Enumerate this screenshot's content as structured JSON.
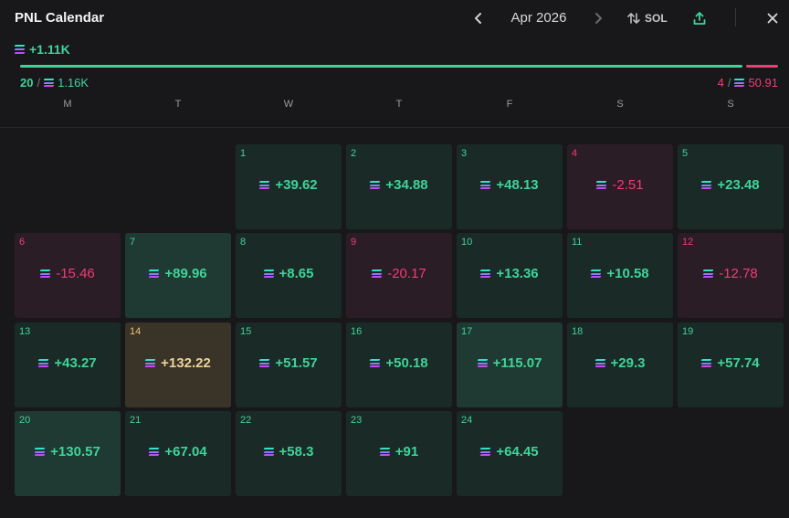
{
  "header": {
    "title": "PNL Calendar",
    "month": "Apr 2026",
    "currency": "SOL"
  },
  "summary": {
    "total": "+1.11K",
    "win_days": "20",
    "win_amount": "1.16K",
    "loss_days": "4",
    "loss_amount": "50.91",
    "win_ratio": 0.958
  },
  "weekdays": [
    "M",
    "T",
    "W",
    "T",
    "F",
    "S",
    "S"
  ],
  "days": [
    {
      "day": "1",
      "value": "+39.62",
      "kind": "pos"
    },
    {
      "day": "2",
      "value": "+34.88",
      "kind": "pos"
    },
    {
      "day": "3",
      "value": "+48.13",
      "kind": "pos"
    },
    {
      "day": "4",
      "value": "-2.51",
      "kind": "neg"
    },
    {
      "day": "5",
      "value": "+23.48",
      "kind": "pos"
    },
    {
      "day": "6",
      "value": "-15.46",
      "kind": "neg"
    },
    {
      "day": "7",
      "value": "+89.96",
      "kind": "pos-strong"
    },
    {
      "day": "8",
      "value": "+8.65",
      "kind": "pos"
    },
    {
      "day": "9",
      "value": "-20.17",
      "kind": "neg"
    },
    {
      "day": "10",
      "value": "+13.36",
      "kind": "pos"
    },
    {
      "day": "11",
      "value": "+10.58",
      "kind": "pos"
    },
    {
      "day": "12",
      "value": "-12.78",
      "kind": "neg"
    },
    {
      "day": "13",
      "value": "+43.27",
      "kind": "pos"
    },
    {
      "day": "14",
      "value": "+132.22",
      "kind": "best"
    },
    {
      "day": "15",
      "value": "+51.57",
      "kind": "pos"
    },
    {
      "day": "16",
      "value": "+50.18",
      "kind": "pos"
    },
    {
      "day": "17",
      "value": "+115.07",
      "kind": "pos-strong"
    },
    {
      "day": "18",
      "value": "+29.3",
      "kind": "pos"
    },
    {
      "day": "19",
      "value": "+57.74",
      "kind": "pos"
    },
    {
      "day": "20",
      "value": "+130.57",
      "kind": "pos-strong"
    },
    {
      "day": "21",
      "value": "+67.04",
      "kind": "pos"
    },
    {
      "day": "22",
      "value": "+58.3",
      "kind": "pos"
    },
    {
      "day": "23",
      "value": "+91",
      "kind": "pos"
    },
    {
      "day": "24",
      "value": "+64.45",
      "kind": "pos"
    }
  ],
  "colors": {
    "positive": "#3fd39a",
    "negative": "#ee3d74",
    "best": "#ecd29a",
    "background": "#18181b"
  },
  "icons": [
    "sol-icon",
    "chevron-left-icon",
    "chevron-right-icon",
    "sort-icon",
    "share-icon",
    "close-icon"
  ]
}
